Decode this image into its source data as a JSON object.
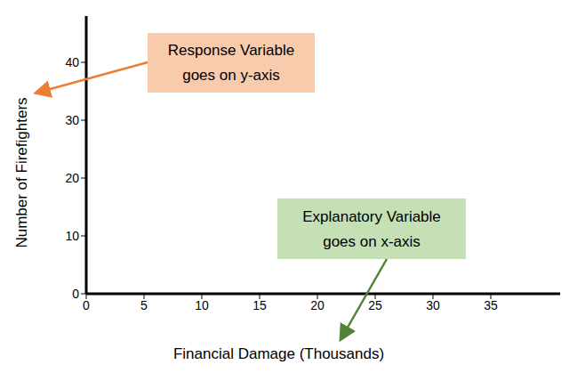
{
  "chart_data": {
    "type": "scatter",
    "x": [],
    "values": [],
    "x_label": "Financial Damage (Thousands)",
    "y_label": "Number of Firefighters",
    "xlim": [
      0,
      41
    ],
    "xticks": [
      0,
      5,
      10,
      15,
      20,
      25,
      30,
      35
    ],
    "ylim": [
      0,
      48
    ],
    "yticks": [
      0,
      10,
      20,
      30,
      40
    ],
    "grid": false,
    "annotations": [
      {
        "text": [
          "Response Variable",
          "goes on y-axis"
        ]
      },
      {
        "text": [
          "Explanatory Variable",
          "goes on x-axis"
        ]
      }
    ]
  }
}
